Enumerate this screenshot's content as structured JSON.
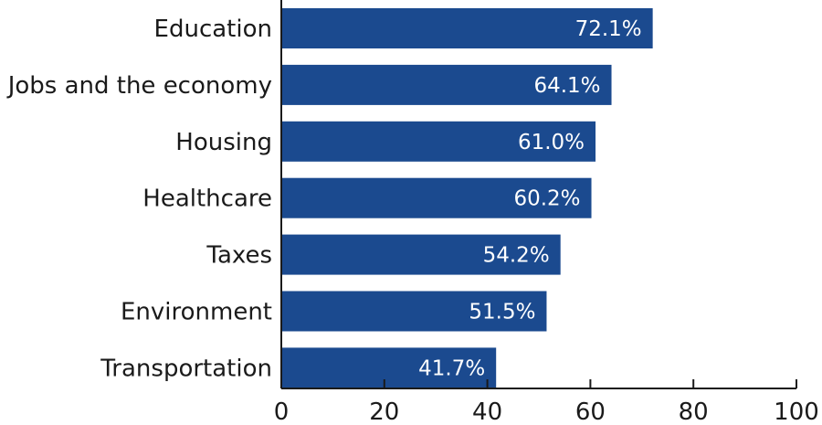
{
  "chart_data": {
    "type": "bar",
    "orientation": "horizontal",
    "categories": [
      "Education",
      "Jobs and the economy",
      "Housing",
      "Healthcare",
      "Taxes",
      "Environment",
      "Transportation"
    ],
    "values": [
      72.1,
      64.1,
      61.0,
      60.2,
      54.2,
      51.5,
      41.7
    ],
    "value_labels": [
      "72.1%",
      "64.1%",
      "61.0%",
      "60.2%",
      "54.2%",
      "51.5%",
      "41.7%"
    ],
    "xlim": [
      0,
      100
    ],
    "xticks": [
      0,
      20,
      40,
      60,
      80,
      100
    ],
    "xtick_labels": [
      "0",
      "20",
      "40",
      "60",
      "80",
      "100"
    ],
    "title": "",
    "xlabel": "",
    "ylabel": "",
    "grid": false,
    "bar_color": "#1b4a8f"
  }
}
